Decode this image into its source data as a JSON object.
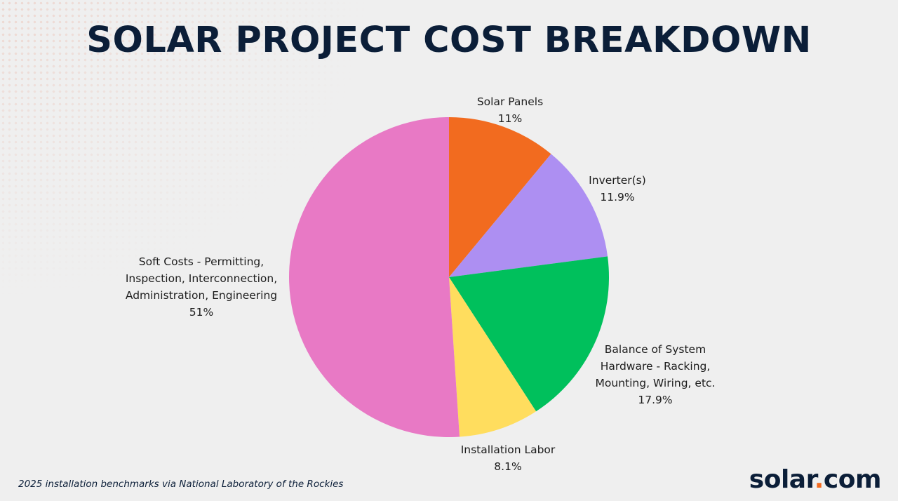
{
  "title": "SOLAR PROJECT COST BREAKDOWN",
  "source_note": "2025 installation benchmarks via National Laboratory of the Rockies",
  "logo": {
    "left": "solar",
    "dot": ".",
    "right": "com"
  },
  "chart_data": {
    "type": "pie",
    "title": "SOLAR PROJECT COST BREAKDOWN",
    "start": "12 o'clock",
    "direction": "clockwise",
    "slices": [
      {
        "label_lines": [
          "Solar Panels"
        ],
        "value_text": "11%",
        "value": 11,
        "color": "#f26b1f"
      },
      {
        "label_lines": [
          "Inverter(s)"
        ],
        "value_text": "11.9%",
        "value": 11.9,
        "color": "#ad8ff2"
      },
      {
        "label_lines": [
          "Balance of System",
          "Hardware - Racking,",
          "Mounting, Wiring, etc."
        ],
        "value_text": "17.9%",
        "value": 17.9,
        "color": "#00c05c"
      },
      {
        "label_lines": [
          "Installation Labor"
        ],
        "value_text": "8.1%",
        "value": 8.1,
        "color": "#ffdd5e"
      },
      {
        "label_lines": [
          "Soft Costs - Permitting,",
          "Inspection, Interconnection,",
          "Administration, Engineering"
        ],
        "value_text": "51%",
        "value": 51,
        "color": "#e879c5"
      }
    ]
  }
}
